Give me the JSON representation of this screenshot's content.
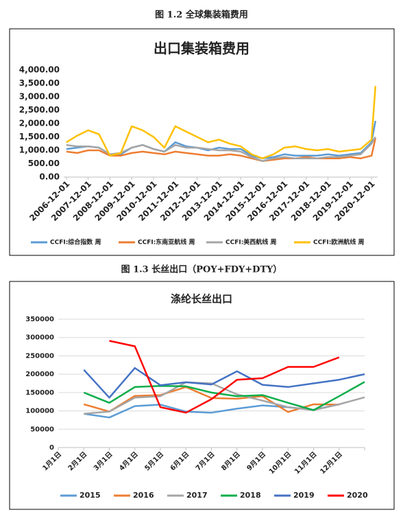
{
  "chart_data": [
    {
      "type": "line",
      "caption": "图 1.2  全球集装箱费用",
      "title": "出口集装箱费用",
      "x": [
        2006.92,
        2007.42,
        2007.92,
        2008.42,
        2008.92,
        2009.42,
        2009.92,
        2010.42,
        2010.92,
        2011.42,
        2011.92,
        2012.42,
        2012.92,
        2013.42,
        2013.92,
        2014.42,
        2014.92,
        2015.42,
        2015.92,
        2016.42,
        2016.92,
        2017.42,
        2017.92,
        2018.42,
        2018.92,
        2019.42,
        2019.92,
        2020.42,
        2020.92,
        2021.1
      ],
      "xlim": [
        2006.8,
        2021.2
      ],
      "xticks": [
        {
          "value": 2006.92,
          "label": "2006-12-01"
        },
        {
          "value": 2007.92,
          "label": "2007-12-01"
        },
        {
          "value": 2008.92,
          "label": "2008-12-01"
        },
        {
          "value": 2009.92,
          "label": "2009-12-01"
        },
        {
          "value": 2010.92,
          "label": "2010-12-01"
        },
        {
          "value": 2011.92,
          "label": "2011-12-01"
        },
        {
          "value": 2012.92,
          "label": "2012-12-01"
        },
        {
          "value": 2013.92,
          "label": "2013-12-01"
        },
        {
          "value": 2014.92,
          "label": "2014-12-01"
        },
        {
          "value": 2015.92,
          "label": "2015-12-01"
        },
        {
          "value": 2016.92,
          "label": "2016-12-01"
        },
        {
          "value": 2017.92,
          "label": "2017-12-01"
        },
        {
          "value": 2018.92,
          "label": "2018-12-01"
        },
        {
          "value": 2019.92,
          "label": "2019-12-01"
        },
        {
          "value": 2020.92,
          "label": "2020-12-01"
        }
      ],
      "ylim": [
        0,
        4000
      ],
      "yticks": [
        {
          "value": 0,
          "label": "0.00"
        },
        {
          "value": 500,
          "label": "500.00"
        },
        {
          "value": 1000,
          "label": "1,000.00"
        },
        {
          "value": 1500,
          "label": "1,500.00"
        },
        {
          "value": 2000,
          "label": "2,000.00"
        },
        {
          "value": 2500,
          "label": "2,500.00"
        },
        {
          "value": 3000,
          "label": "3,000.00"
        },
        {
          "value": 3500,
          "label": "3,500.00"
        },
        {
          "value": 4000,
          "label": "4,000.00"
        }
      ],
      "grid": false,
      "series": [
        {
          "name": "CCFI:综合指数 周",
          "color": "#5b9bd5",
          "values": [
            1050,
            1100,
            1150,
            1100,
            850,
            850,
            1100,
            1200,
            1050,
            950,
            1300,
            1150,
            1100,
            1000,
            1100,
            1050,
            1050,
            800,
            700,
            750,
            850,
            800,
            800,
            800,
            850,
            800,
            850,
            900,
            1300,
            2100
          ]
        },
        {
          "name": "CCFI:东南亚航线 周",
          "color": "#ed7d31",
          "values": [
            950,
            900,
            1000,
            1000,
            800,
            800,
            900,
            950,
            900,
            850,
            950,
            900,
            850,
            800,
            800,
            850,
            800,
            700,
            600,
            650,
            700,
            700,
            750,
            700,
            700,
            700,
            750,
            700,
            800,
            1450
          ]
        },
        {
          "name": "CCFI:美西航线 周",
          "color": "#a5a5a5",
          "values": [
            1200,
            1150,
            1150,
            1100,
            850,
            900,
            1100,
            1200,
            1050,
            950,
            1200,
            1100,
            1100,
            1050,
            1000,
            1000,
            950,
            750,
            600,
            700,
            750,
            700,
            700,
            700,
            750,
            750,
            800,
            850,
            1250,
            1500
          ]
        },
        {
          "name": "CCFI:欧洲航线 周",
          "color": "#ffc000",
          "values": [
            1300,
            1550,
            1750,
            1600,
            800,
            900,
            1900,
            1750,
            1500,
            1100,
            1900,
            1700,
            1500,
            1300,
            1400,
            1250,
            1150,
            850,
            700,
            850,
            1100,
            1150,
            1050,
            1000,
            1050,
            950,
            1000,
            1050,
            1400,
            3400
          ]
        }
      ]
    },
    {
      "type": "line",
      "caption": "图 1.3  长丝出口（POY+FDY+DTY）",
      "title": "涤纶长丝出口",
      "categories": [
        "1月1日",
        "2月1日",
        "3月1日",
        "4月1日",
        "5月1日",
        "6月1日",
        "7月1日",
        "8月1日",
        "9月1日",
        "10月1日",
        "11月1日",
        "12月1日",
        null
      ],
      "ylim": [
        0,
        350000
      ],
      "yticks": [
        0,
        50000,
        100000,
        150000,
        200000,
        250000,
        300000,
        350000
      ],
      "grid": true,
      "series": [
        {
          "name": "2015",
          "color": "#5b9bd5",
          "values": [
            null,
            92000,
            82000,
            113000,
            117000,
            98000,
            95000,
            106000,
            115000,
            110000,
            103000,
            118000,
            null
          ]
        },
        {
          "name": "2016",
          "color": "#ed7d31",
          "values": [
            null,
            118000,
            98000,
            141000,
            143000,
            165000,
            135000,
            133000,
            140000,
            97000,
            118000,
            117000,
            null
          ]
        },
        {
          "name": "2017",
          "color": "#a5a5a5",
          "values": [
            null,
            92000,
            98000,
            136000,
            140000,
            178000,
            175000,
            145000,
            128000,
            110000,
            102000,
            118000,
            137000
          ]
        },
        {
          "name": "2018",
          "color": "#0aad4a",
          "values": [
            null,
            150000,
            122000,
            165000,
            168000,
            167000,
            150000,
            140000,
            143000,
            122000,
            102000,
            140000,
            179000
          ]
        },
        {
          "name": "2019",
          "color": "#4472c4",
          "values": [
            null,
            212000,
            136000,
            217000,
            170000,
            178000,
            172000,
            208000,
            171000,
            165000,
            175000,
            185000,
            200000
          ]
        },
        {
          "name": "2020",
          "color": "#ff0000",
          "values": [
            null,
            null,
            291000,
            276000,
            110000,
            95000,
            132000,
            185000,
            189000,
            220000,
            220000,
            246000,
            null
          ]
        }
      ]
    }
  ]
}
